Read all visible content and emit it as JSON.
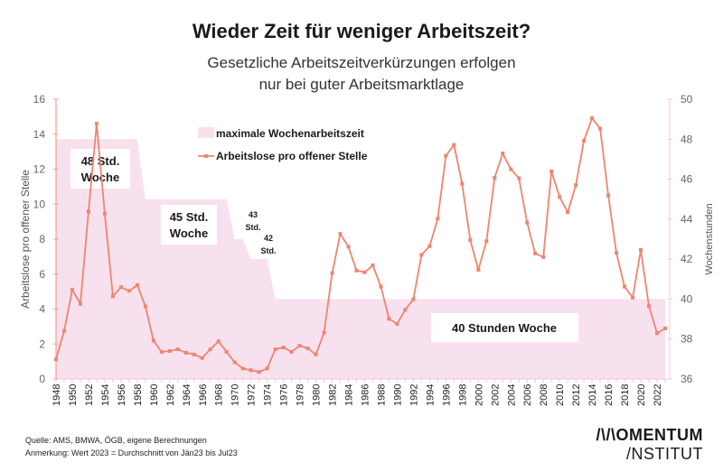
{
  "chart_data": {
    "type": "line",
    "title": "Wieder Zeit für weniger Arbeitszeit?",
    "subtitle_lines": [
      "Gesetzliche Arbeitszeitverkürzungen erfolgen",
      "nur bei guter Arbeitsmarktlage"
    ],
    "ylabel": "Arbeitslose pro offener Stelle",
    "y2label": "Wochenstunden",
    "ylim": [
      0,
      16
    ],
    "y2lim": [
      36,
      50
    ],
    "yticks": [
      "0",
      "2",
      "4",
      "6",
      "8",
      "10",
      "12",
      "14",
      "16"
    ],
    "y2ticks": [
      "36",
      "38",
      "40",
      "42",
      "44",
      "46",
      "48",
      "50"
    ],
    "x": [
      1948,
      1949,
      1950,
      1951,
      1952,
      1953,
      1954,
      1955,
      1956,
      1957,
      1958,
      1959,
      1960,
      1961,
      1962,
      1963,
      1964,
      1965,
      1966,
      1967,
      1968,
      1969,
      1970,
      1971,
      1972,
      1973,
      1974,
      1975,
      1976,
      1977,
      1978,
      1979,
      1980,
      1981,
      1982,
      1983,
      1984,
      1985,
      1986,
      1987,
      1988,
      1989,
      1990,
      1991,
      1992,
      1993,
      1994,
      1995,
      1996,
      1997,
      1998,
      1999,
      2000,
      2001,
      2002,
      2003,
      2004,
      2005,
      2006,
      2007,
      2008,
      2009,
      2010,
      2011,
      2012,
      2013,
      2014,
      2015,
      2016,
      2017,
      2018,
      2019,
      2020,
      2021,
      2022,
      2023
    ],
    "xticks": [
      "1948",
      "1950",
      "1952",
      "1954",
      "1956",
      "1958",
      "1960",
      "1962",
      "1964",
      "1966",
      "1968",
      "1970",
      "1972",
      "1974",
      "1976",
      "1978",
      "1980",
      "1982",
      "1984",
      "1986",
      "1988",
      "1990",
      "1992",
      "1994",
      "1996",
      "1998",
      "2000",
      "2002",
      "2004",
      "2006",
      "2008",
      "2010",
      "2012",
      "2014",
      "2016",
      "2018",
      "2020",
      "2022"
    ],
    "series": [
      {
        "name": "maximale Wochenarbeitszeit",
        "type": "area",
        "axis": "right",
        "color": "#f8e1ef",
        "values": [
          48,
          48,
          48,
          48,
          48,
          48,
          48,
          48,
          48,
          48,
          48,
          45,
          45,
          45,
          45,
          45,
          45,
          45,
          45,
          45,
          45,
          45,
          43,
          43,
          42,
          42,
          42,
          40,
          40,
          40,
          40,
          40,
          40,
          40,
          40,
          40,
          40,
          40,
          40,
          40,
          40,
          40,
          40,
          40,
          40,
          40,
          40,
          40,
          40,
          40,
          40,
          40,
          40,
          40,
          40,
          40,
          40,
          40,
          40,
          40,
          40,
          40,
          40,
          40,
          40,
          40,
          40,
          40,
          40,
          40,
          40,
          40,
          40,
          40,
          40,
          40
        ]
      },
      {
        "name": "Arbeitslose pro offener Stelle",
        "type": "line",
        "axis": "left",
        "color": "#f0846e",
        "values": [
          1.12,
          2.75,
          5.1,
          4.3,
          9.58,
          14.6,
          9.46,
          4.73,
          5.25,
          5.04,
          5.37,
          4.16,
          2.19,
          1.55,
          1.6,
          1.7,
          1.5,
          1.4,
          1.2,
          1.7,
          2.15,
          1.55,
          0.95,
          0.6,
          0.5,
          0.4,
          0.6,
          1.7,
          1.8,
          1.55,
          1.9,
          1.75,
          1.4,
          2.65,
          6.05,
          8.3,
          7.57,
          6.2,
          6.1,
          6.5,
          5.28,
          3.44,
          3.15,
          3.96,
          4.56,
          7.1,
          7.6,
          9.17,
          12.77,
          13.39,
          11.17,
          7.95,
          6.25,
          7.88,
          11.51,
          12.9,
          12.0,
          11.48,
          8.95,
          7.18,
          6.97,
          11.88,
          10.41,
          9.54,
          11.08,
          13.63,
          14.92,
          14.32,
          10.5,
          7.21,
          5.28,
          4.65,
          7.38,
          4.17,
          2.62,
          2.89
        ]
      }
    ],
    "legend": [
      "maximale Wochenarbeitszeit",
      "Arbeitslose pro offener Stelle"
    ],
    "legend_position": "top-center",
    "annotations": {
      "a48": [
        "48 Std.",
        "Woche"
      ],
      "a45": [
        "45 Std.",
        "Woche"
      ],
      "a43": [
        "43",
        "Std."
      ],
      "a42": [
        "42",
        "Std."
      ],
      "a40": "40 Stunden Woche"
    }
  },
  "footer": {
    "source": "Quelle: AMS, BMWA, ÖGB, eigene Berechnungen",
    "note": "Anmerkung: Wert 2023 = Durchschnitt von Jän23 bis Jul23",
    "logo_line1": "/\\/\\OMENTUM",
    "logo_line2": "/NSTITUT"
  }
}
